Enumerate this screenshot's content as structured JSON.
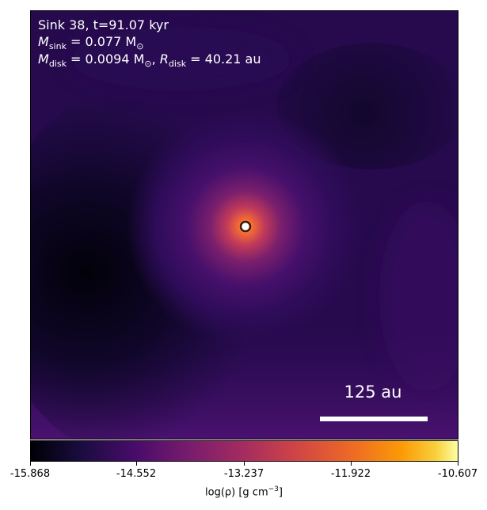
{
  "annotation": {
    "line1": "Sink 38, t=91.07 kyr",
    "line2_label": "M",
    "line2_sub": "sink",
    "line2_value": " = 0.077 M",
    "line2_sun": "⊙",
    "line3_label": "M",
    "line3_sub": "disk",
    "line3_value": " = 0.0094 M",
    "line3_sun": "⊙",
    "line3_sep": ", ",
    "line3_r": "R",
    "line3_rsub": "disk",
    "line3_rvalue": " = 40.21 au"
  },
  "scalebar": {
    "label": "125 au"
  },
  "colorbar": {
    "ticks": [
      "-15.868",
      "-14.552",
      "-13.237",
      "-11.922",
      "-10.607"
    ],
    "label_prefix": "log(ρ) [g cm",
    "label_sup": "−3",
    "label_suffix": "]"
  },
  "colors": {
    "background_dark": "#0b0520",
    "mid_purple": "#3d1062",
    "core": "#f3703c",
    "sink_marker": "#ffffff"
  }
}
